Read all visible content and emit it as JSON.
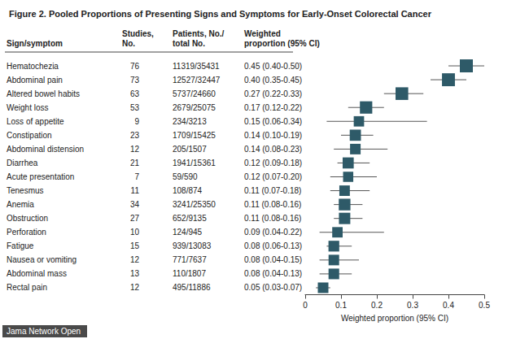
{
  "chart_data": {
    "type": "forest",
    "title": "Figure 2. Pooled Proportions of Presenting Signs and Symptoms for Early-Onset Colorectal Cancer",
    "columns": [
      "Sign/symptom",
      "Studies,\nNo.",
      "Patients, No./\ntotal No.",
      "Weighted\nproportion (95% CI)"
    ],
    "categories": [
      "Hematochezia",
      "Abdominal pain",
      "Altered bowel habits",
      "Weight loss",
      "Loss of appetite",
      "Constipation",
      "Abdominal distension",
      "Diarrhea",
      "Acute presentation",
      "Tenesmus",
      "Anemia",
      "Obstruction",
      "Perforation",
      "Fatigue",
      "Nausea or vomiting",
      "Abdominal mass",
      "Rectal pain"
    ],
    "studies": [
      76,
      73,
      63,
      53,
      9,
      23,
      12,
      21,
      7,
      11,
      34,
      27,
      10,
      15,
      12,
      13,
      12
    ],
    "patients": [
      "11319/35431",
      "12527/32447",
      "5737/24660",
      "2679/25075",
      "234/3213",
      "1709/15425",
      "205/1507",
      "1941/15361",
      "59/590",
      "108/874",
      "3241/25350",
      "652/9135",
      "124/945",
      "939/13083",
      "771/7637",
      "110/1807",
      "495/11886"
    ],
    "values": [
      0.45,
      0.4,
      0.27,
      0.17,
      0.15,
      0.14,
      0.14,
      0.12,
      0.12,
      0.11,
      0.11,
      0.11,
      0.09,
      0.08,
      0.08,
      0.08,
      0.05
    ],
    "ci_low": [
      0.4,
      0.35,
      0.22,
      0.12,
      0.06,
      0.1,
      0.08,
      0.09,
      0.07,
      0.07,
      0.08,
      0.08,
      0.04,
      0.06,
      0.04,
      0.04,
      0.03
    ],
    "ci_high": [
      0.5,
      0.45,
      0.33,
      0.22,
      0.34,
      0.19,
      0.23,
      0.18,
      0.2,
      0.18,
      0.16,
      0.16,
      0.22,
      0.13,
      0.15,
      0.13,
      0.07
    ],
    "value_labels": [
      "0.45 (0.40-0.50)",
      "0.40 (0.35-0.45)",
      "0.27 (0.22-0.33)",
      "0.17 (0.12-0.22)",
      "0.15 (0.06-0.34)",
      "0.14 (0.10-0.19)",
      "0.14 (0.08-0.23)",
      "0.12 (0.09-0.18)",
      "0.12 (0.07-0.20)",
      "0.11 (0.07-0.18)",
      "0.11 (0.08-0.16)",
      "0.11 (0.08-0.16)",
      "0.09 (0.04-0.22)",
      "0.08 (0.06-0.13)",
      "0.08 (0.04-0.15)",
      "0.08 (0.04-0.13)",
      "0.05 (0.03-0.07)"
    ],
    "xlabel": "Weighted proportion (95% CI)",
    "xlim": [
      0,
      0.5
    ],
    "xticks": [
      0,
      0.1,
      0.2,
      0.3,
      0.4,
      0.5
    ],
    "color": "#2e5a68",
    "marker": "square",
    "grid": false,
    "source": "Jama Network Open"
  }
}
